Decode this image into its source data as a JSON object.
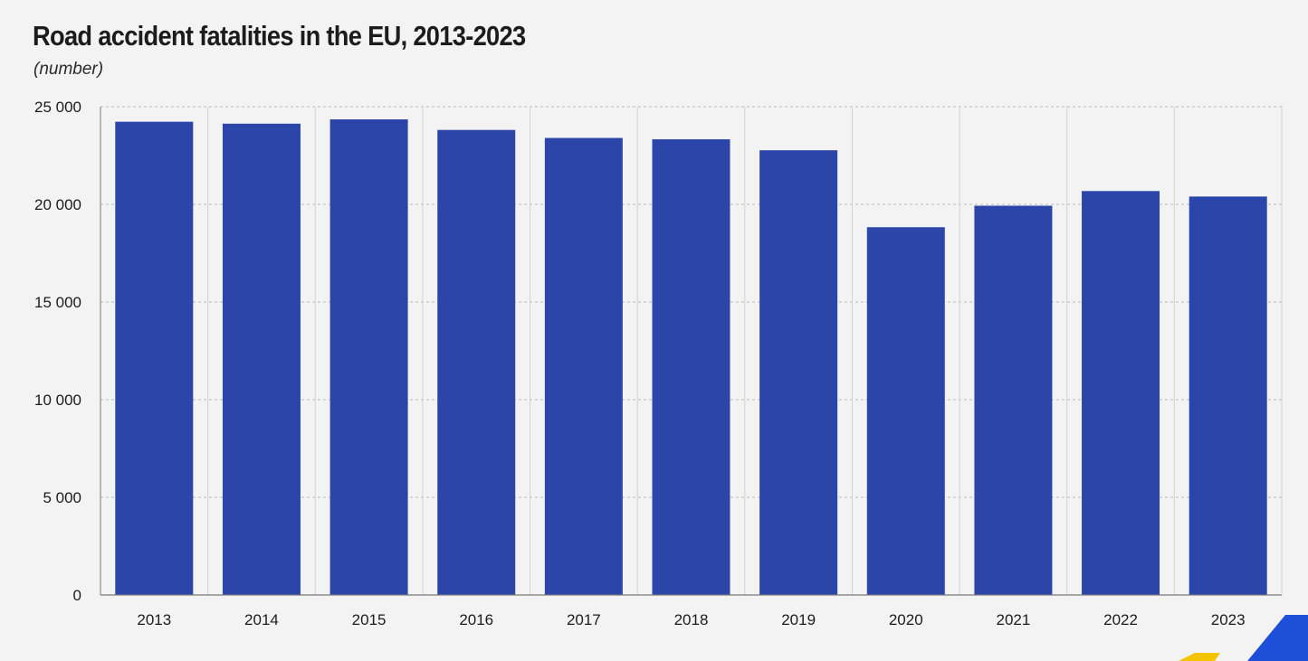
{
  "chart_data": {
    "type": "bar",
    "title": "Road accident fatalities in the EU, 2013-2023",
    "subtitle": "(number)",
    "categories": [
      "2013",
      "2014",
      "2015",
      "2016",
      "2017",
      "2018",
      "2019",
      "2020",
      "2021",
      "2022",
      "2023"
    ],
    "values": [
      24230,
      24130,
      24350,
      23810,
      23400,
      23330,
      22770,
      18830,
      19930,
      20680,
      20400
    ],
    "ylim": [
      0,
      25000
    ],
    "yticks": [
      0,
      5000,
      10000,
      15000,
      20000,
      25000
    ],
    "ytick_labels": [
      "0",
      "5 000",
      "10 000",
      "15 000",
      "20 000",
      "25 000"
    ],
    "grid": true,
    "bar_color": "#2b45a8"
  }
}
